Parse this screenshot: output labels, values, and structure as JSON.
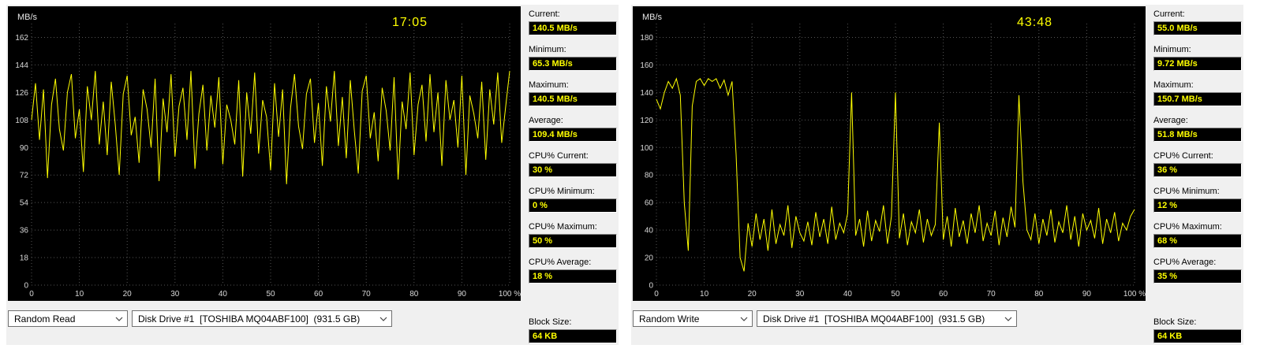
{
  "colors": {
    "line": "#ffff00",
    "chart_bg": "#000000",
    "grid": "#555555",
    "tick_text": "#d8d8d8",
    "value_text": "#ffff00",
    "value_bg": "#000000",
    "time_text": "#ffff00"
  },
  "panels": [
    {
      "y_unit": "MB/s",
      "time": "17:05",
      "stats": [
        {
          "label": "Current:",
          "value": "140.5 MB/s"
        },
        {
          "label": "Minimum:",
          "value": "65.3 MB/s"
        },
        {
          "label": "Maximum:",
          "value": "140.5 MB/s"
        },
        {
          "label": "Average:",
          "value": "109.4 MB/s"
        },
        {
          "label": "CPU% Current:",
          "value": "30 %"
        },
        {
          "label": "CPU% Minimum:",
          "value": "0 %"
        },
        {
          "label": "CPU% Maximum:",
          "value": "50 %"
        },
        {
          "label": "CPU% Average:",
          "value": "18 %"
        },
        {
          "label": "Block Size:",
          "value": "64 KB"
        }
      ],
      "mode_select": "Random Read",
      "drive_select": "Disk Drive #1  [TOSHIBA MQ04ABF100]  (931.5 GB)"
    },
    {
      "y_unit": "MB/s",
      "time": "43:48",
      "stats": [
        {
          "label": "Current:",
          "value": "55.0 MB/s"
        },
        {
          "label": "Minimum:",
          "value": "9.72 MB/s"
        },
        {
          "label": "Maximum:",
          "value": "150.7 MB/s"
        },
        {
          "label": "Average:",
          "value": "51.8 MB/s"
        },
        {
          "label": "CPU% Current:",
          "value": "36 %"
        },
        {
          "label": "CPU% Minimum:",
          "value": "12 %"
        },
        {
          "label": "CPU% Maximum:",
          "value": "68 %"
        },
        {
          "label": "CPU% Average:",
          "value": "35 %"
        },
        {
          "label": "Block Size:",
          "value": "64 KB"
        }
      ],
      "mode_select": "Random Write",
      "drive_select": "Disk Drive #1  [TOSHIBA MQ04ABF100]  (931.5 GB)"
    }
  ],
  "chart_data": [
    {
      "type": "line",
      "title": "Random Read throughput",
      "ylabel": "MB/s",
      "xlabel": "%",
      "ylim": [
        0,
        171
      ],
      "yticks": [
        0,
        18,
        36,
        54,
        72,
        90,
        108,
        126,
        144,
        162
      ],
      "xticks": [
        0,
        10,
        20,
        30,
        40,
        50,
        60,
        70,
        80,
        90,
        100
      ],
      "x_suffix": "%",
      "grid": true,
      "values": [
        108,
        132,
        95,
        128,
        70,
        118,
        135,
        102,
        88,
        126,
        138,
        96,
        115,
        74,
        130,
        108,
        140,
        92,
        120,
        85,
        133,
        105,
        72,
        125,
        137,
        98,
        110,
        80,
        128,
        115,
        90,
        135,
        68,
        122,
        100,
        138,
        84,
        117,
        129,
        95,
        140,
        76,
        112,
        131,
        88,
        124,
        103,
        136,
        79,
        118,
        108,
        92,
        134,
        71,
        126,
        99,
        139,
        86,
        121,
        110,
        75,
        132,
        97,
        128,
        66,
        116,
        138,
        104,
        89,
        125,
        135,
        93,
        119,
        78,
        130,
        107,
        140,
        91,
        123,
        83,
        134,
        101,
        73,
        127,
        137,
        96,
        113,
        81,
        129,
        114,
        88,
        136,
        69,
        120,
        102,
        139,
        85,
        118,
        131,
        94,
        138,
        100,
        126,
        78,
        134,
        108,
        121,
        90,
        137,
        72,
        124,
        112,
        96,
        133,
        82,
        128,
        105,
        139,
        93,
        117,
        140
      ]
    },
    {
      "type": "line",
      "title": "Random Write throughput",
      "ylabel": "MB/s",
      "xlabel": "%",
      "ylim": [
        0,
        190
      ],
      "yticks": [
        0,
        20,
        40,
        60,
        80,
        100,
        120,
        140,
        160,
        180
      ],
      "xticks": [
        0,
        10,
        20,
        30,
        40,
        50,
        60,
        70,
        80,
        90,
        100
      ],
      "x_suffix": "%",
      "grid": true,
      "values": [
        135,
        128,
        140,
        148,
        143,
        150,
        138,
        60,
        25,
        130,
        148,
        150,
        145,
        150,
        148,
        150,
        143,
        149,
        138,
        148,
        95,
        20,
        10,
        45,
        28,
        52,
        33,
        48,
        25,
        55,
        30,
        44,
        36,
        58,
        27,
        50,
        38,
        32,
        46,
        29,
        53,
        35,
        48,
        30,
        57,
        33,
        45,
        38,
        52,
        140,
        36,
        48,
        28,
        54,
        32,
        47,
        39,
        58,
        30,
        50,
        140,
        34,
        52,
        29,
        46,
        38,
        55,
        31,
        48,
        36,
        44,
        118,
        33,
        50,
        28,
        56,
        35,
        47,
        30,
        52,
        38,
        58,
        32,
        45,
        36,
        54,
        29,
        49,
        35,
        57,
        42,
        138,
        75,
        40,
        33,
        52,
        30,
        48,
        36,
        55,
        31,
        46,
        38,
        58,
        33,
        50,
        28,
        52,
        40,
        47,
        34,
        56,
        30,
        48,
        38,
        53,
        32,
        45,
        40,
        50,
        55
      ]
    }
  ]
}
